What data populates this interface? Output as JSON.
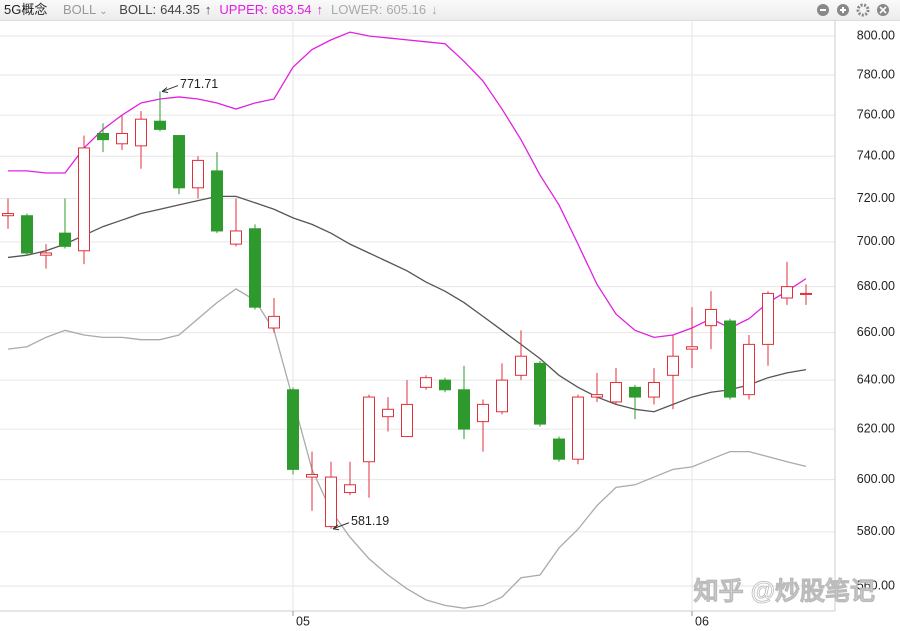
{
  "chart_data": {
    "type": "candlestick",
    "title": "5G概念",
    "indicator": "BOLL",
    "log_scale": true,
    "grid": true,
    "up_color": "#e0323c",
    "down_color": "#2e9a2e",
    "categories": [
      null,
      null,
      null,
      null,
      null,
      null,
      null,
      null,
      null,
      null,
      null,
      null,
      null,
      null,
      null,
      "05",
      null,
      null,
      null,
      null,
      null,
      null,
      null,
      null,
      null,
      null,
      null,
      null,
      null,
      null,
      null,
      null,
      null,
      null,
      null,
      null,
      "06",
      null,
      null,
      null,
      null,
      null,
      null
    ],
    "open": [
      712,
      712,
      694,
      704,
      696,
      751,
      746,
      745,
      757,
      750,
      725,
      733,
      699,
      706,
      662,
      636,
      601,
      582,
      595,
      607,
      625,
      617,
      637,
      640,
      636,
      623,
      627,
      642,
      647,
      616,
      608,
      633,
      631,
      637,
      633,
      642,
      653,
      663,
      665,
      634,
      655,
      675,
      677
    ],
    "close": [
      713,
      695,
      695,
      698,
      744,
      748,
      751,
      758,
      753,
      725,
      738,
      705,
      705,
      671,
      667,
      604,
      602,
      601,
      598,
      633,
      628,
      630,
      641,
      636,
      620,
      630,
      640,
      650,
      622,
      608,
      633,
      634,
      639,
      633,
      639,
      650,
      654,
      670,
      633,
      655,
      677,
      680,
      677
    ],
    "high": [
      720,
      713,
      699,
      720,
      750,
      756,
      760,
      762,
      771.71,
      750,
      740,
      742,
      720,
      708,
      675,
      637,
      611,
      607,
      607,
      634,
      633,
      640,
      642,
      641,
      646,
      632,
      647,
      661,
      648,
      617,
      634,
      643,
      645,
      638,
      645,
      659,
      671,
      678,
      666,
      659,
      678,
      691,
      681
    ],
    "low": [
      706,
      694,
      688,
      697,
      690,
      742,
      743,
      734,
      752,
      722,
      720,
      704,
      698,
      670,
      660,
      602,
      588,
      581.19,
      594,
      593,
      619,
      617,
      636,
      635,
      616,
      611,
      626,
      640,
      621,
      607,
      606,
      631,
      630,
      624,
      630,
      628,
      645,
      653,
      632,
      632,
      646,
      672,
      672
    ],
    "series": [
      {
        "name": "BOLL:",
        "color": "#555555",
        "values": [
          693,
          694,
          696,
          699,
          703,
          707,
          710,
          713,
          715,
          717,
          719,
          721,
          721,
          718,
          715,
          711,
          708,
          704,
          699,
          695,
          691,
          687,
          682,
          678,
          673,
          667,
          661,
          655,
          649,
          642,
          637,
          633,
          630,
          628,
          627,
          630,
          633,
          635,
          636,
          638,
          641,
          643,
          644.35
        ]
      },
      {
        "name": "UPPER:",
        "color": "#e020e0",
        "values": [
          733,
          733,
          732,
          732,
          744,
          753,
          760,
          766,
          768,
          769,
          768,
          766,
          763,
          766,
          768,
          784,
          793,
          798,
          802,
          800,
          799,
          798,
          797,
          796,
          787,
          777,
          763,
          748,
          731,
          717,
          699,
          681,
          668,
          661,
          658,
          659,
          662,
          666,
          662,
          666,
          673,
          678,
          683.54
        ]
      },
      {
        "name": "LOWER:",
        "color": "#aaaaaa",
        "values": [
          653,
          654,
          658,
          661,
          659,
          658,
          658,
          657,
          657,
          659,
          666,
          673,
          679,
          674,
          661,
          632,
          604,
          588,
          578,
          570,
          564,
          559,
          555,
          553,
          552,
          553,
          556,
          563,
          564,
          574,
          581,
          590,
          597,
          598,
          601,
          604,
          605,
          608,
          611,
          611,
          609,
          607,
          605.16
        ]
      }
    ],
    "ylim": [
      551,
      806
    ],
    "yticks": [
      {
        "value": 560,
        "label": "560.00"
      },
      {
        "value": 580,
        "label": "580.00"
      },
      {
        "value": 600,
        "label": "600.00"
      },
      {
        "value": 620,
        "label": "620.00"
      },
      {
        "value": 640,
        "label": "640.00"
      },
      {
        "value": 660,
        "label": "660.00"
      },
      {
        "value": 680,
        "label": "680.00"
      },
      {
        "value": 700,
        "label": "700.00"
      },
      {
        "value": 720,
        "label": "720.00"
      },
      {
        "value": 740,
        "label": "740.00"
      },
      {
        "value": 760,
        "label": "760.00"
      },
      {
        "value": 780,
        "label": "780.00"
      },
      {
        "value": 800,
        "label": "800.00"
      }
    ],
    "annotations": [
      {
        "index": 8,
        "field": "high"
      },
      {
        "index": 17,
        "field": "low"
      }
    ],
    "watermark": "知乎 @炒股笔记"
  }
}
